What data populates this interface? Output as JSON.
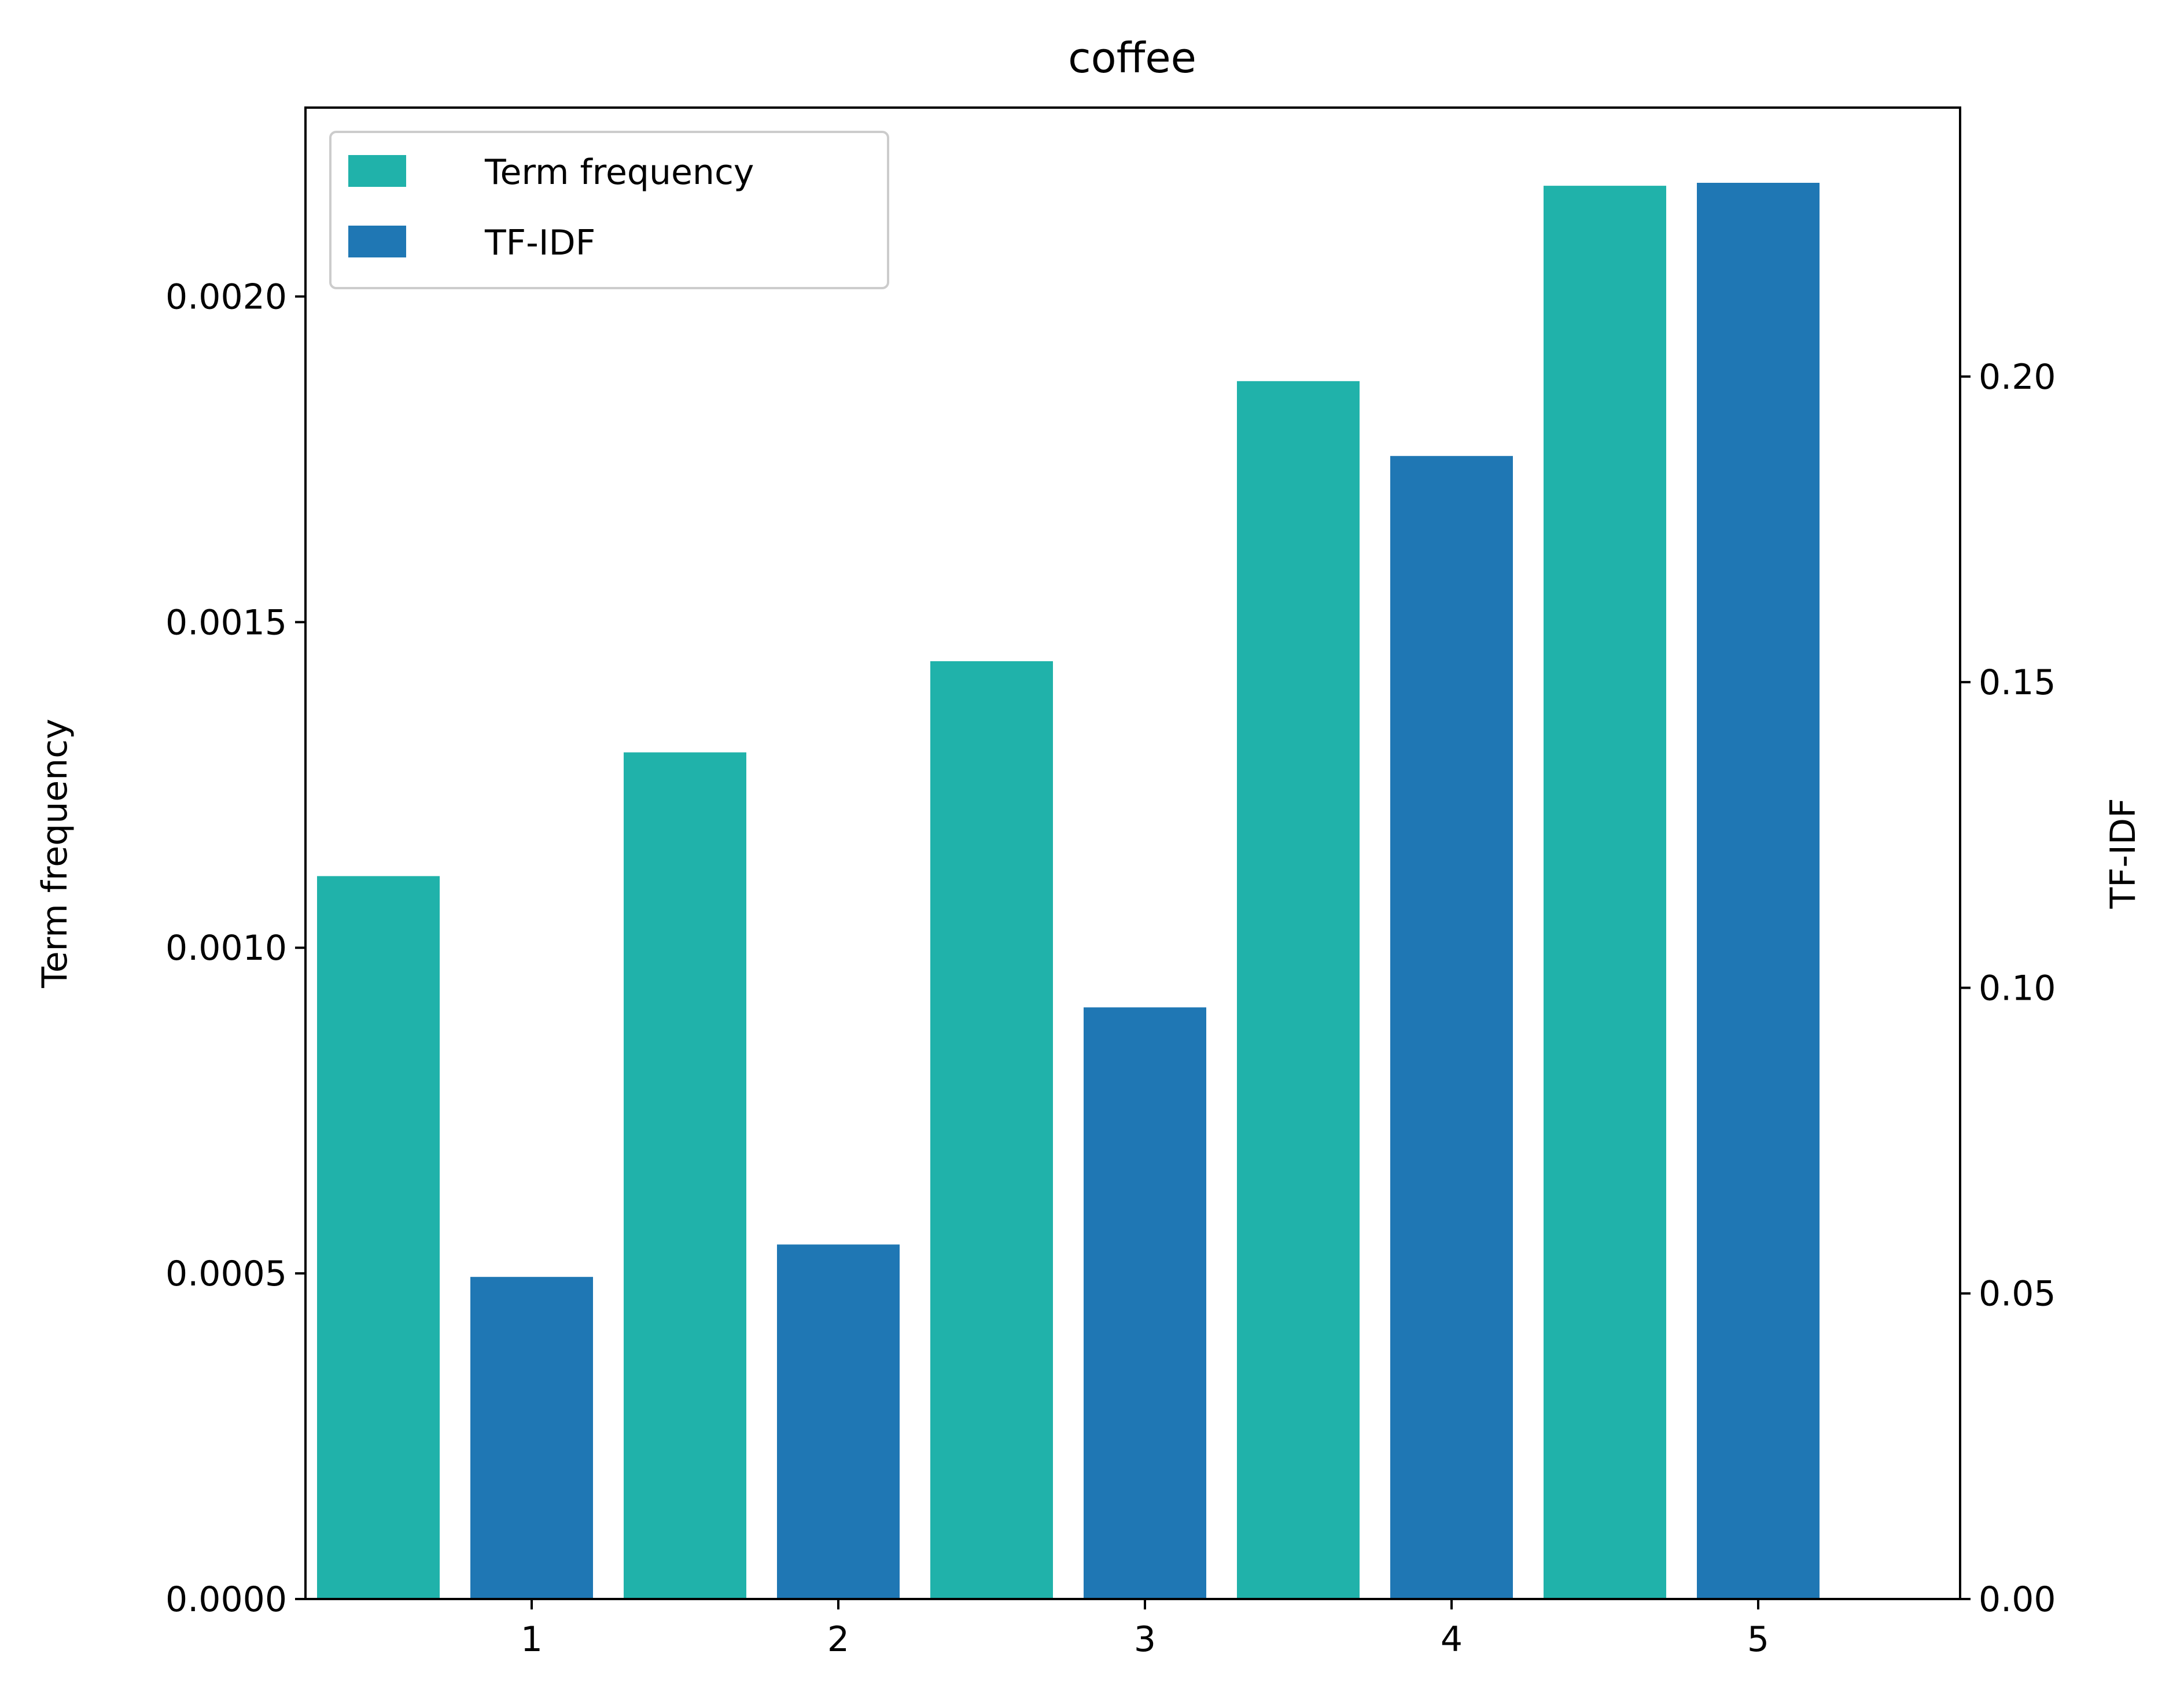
{
  "chart_data": {
    "type": "bar",
    "title": "coffee",
    "categories": [
      "1",
      "2",
      "3",
      "4",
      "5"
    ],
    "series": [
      {
        "name": "Term frequency",
        "axis": "left",
        "color": "#20b2aa",
        "values": [
          0.00111,
          0.0013,
          0.00144,
          0.00187,
          0.00217
        ]
      },
      {
        "name": "TF-IDF",
        "axis": "right",
        "color": "#1f77b4",
        "values": [
          0.0527,
          0.058,
          0.0968,
          0.187,
          0.2317
        ]
      }
    ],
    "y_left": {
      "label": "Term frequency",
      "ylim": [
        0,
        0.00229
      ],
      "ticks": [
        "0.0000",
        "0.0005",
        "0.0010",
        "0.0015",
        "0.0020"
      ]
    },
    "y_right": {
      "label": "TF-IDF",
      "ylim": [
        0,
        0.244
      ],
      "ticks": [
        "0.00",
        "0.05",
        "0.10",
        "0.15",
        "0.20"
      ]
    },
    "grid": false,
    "legend_position": "top-left"
  }
}
